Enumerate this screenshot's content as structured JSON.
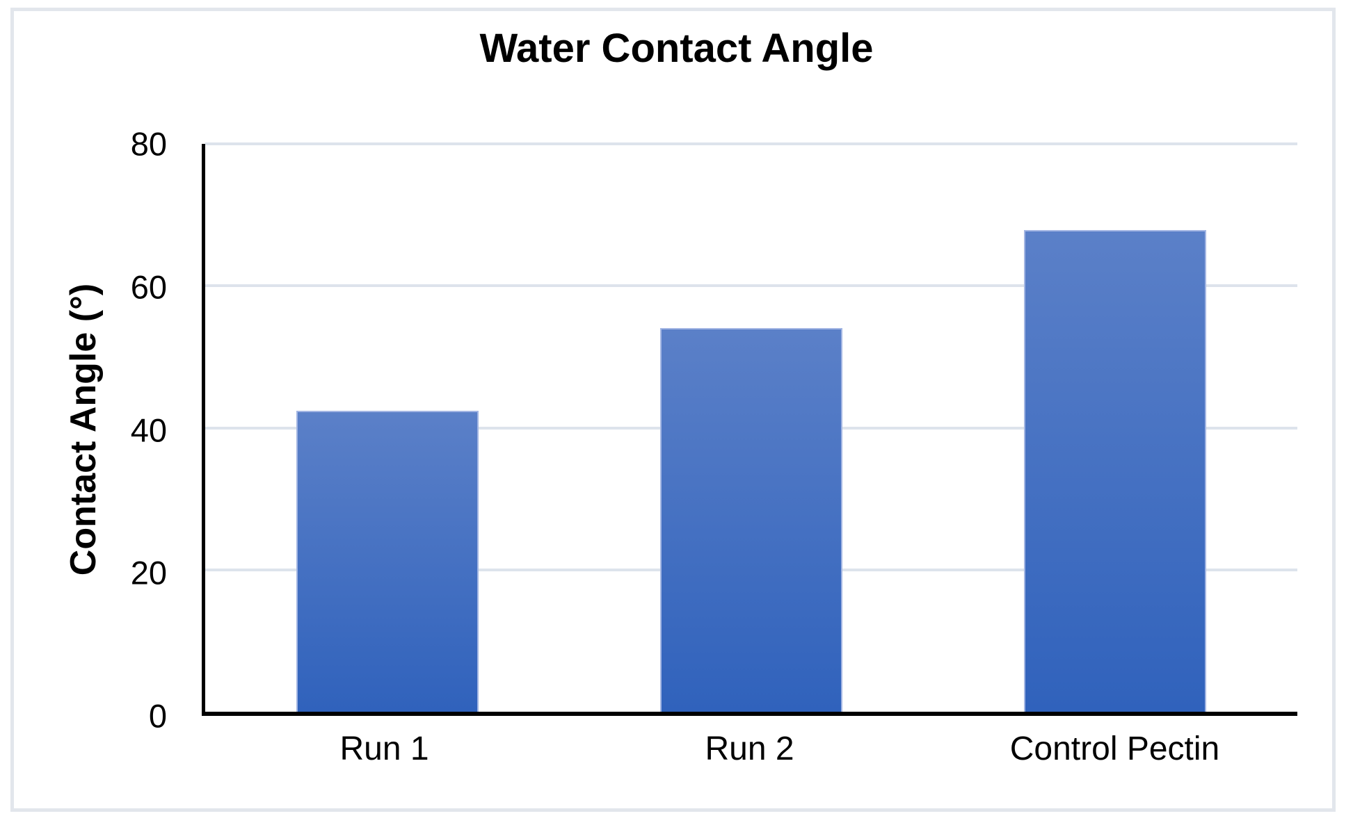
{
  "chart_data": {
    "type": "bar",
    "title": "Water Contact Angle",
    "categories": [
      "Run 1",
      "Run 2",
      "Control Pectin"
    ],
    "values": [
      42.4,
      54.1,
      67.9
    ],
    "xlabel": "",
    "ylabel": "Contact Angle (°)",
    "ylim": [
      0,
      80
    ],
    "yticks": [
      0,
      20,
      40,
      60,
      80
    ],
    "grid": "horizontal",
    "legend_position": "none",
    "colors": {
      "bar_gradient_top": "#5b80c8",
      "bar_gradient_bottom": "#3062bc",
      "bar_edge": "#a3b6e3",
      "gridline": "#dde3ec",
      "axis_line": "#000000",
      "text": "#000000",
      "frame_border": "#e2e6ec",
      "background": "#ffffff"
    }
  }
}
